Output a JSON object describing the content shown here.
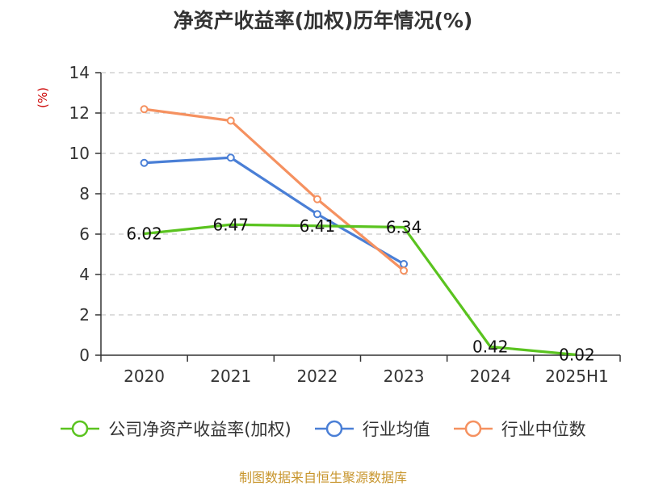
{
  "chart_data": {
    "type": "line",
    "title": "净资产收益率(加权)历年情况(%)",
    "ylabel": "(%)",
    "categories": [
      "2020",
      "2021",
      "2022",
      "2023",
      "2024",
      "2025H1"
    ],
    "ylim": [
      0,
      14
    ],
    "yticks": [
      0,
      2,
      4,
      6,
      8,
      10,
      12,
      14
    ],
    "grid": true,
    "legend_position": "bottom",
    "series": [
      {
        "name": "公司净资产收益率(加权)",
        "color": "#5ac31f",
        "values": [
          6.02,
          6.47,
          6.41,
          6.34,
          0.42,
          0.02
        ],
        "labels": [
          "6.02",
          "6.47",
          "6.41",
          "6.34",
          "0.42",
          "0.02"
        ]
      },
      {
        "name": "行业均值",
        "color": "#4a7fd6",
        "values": [
          9.53,
          9.79,
          6.99,
          4.52,
          null,
          null
        ]
      },
      {
        "name": "行业中位数",
        "color": "#f59160",
        "values": [
          12.19,
          11.62,
          7.73,
          4.19,
          null,
          null
        ]
      }
    ]
  },
  "source": "制图数据来自恒生聚源数据库"
}
